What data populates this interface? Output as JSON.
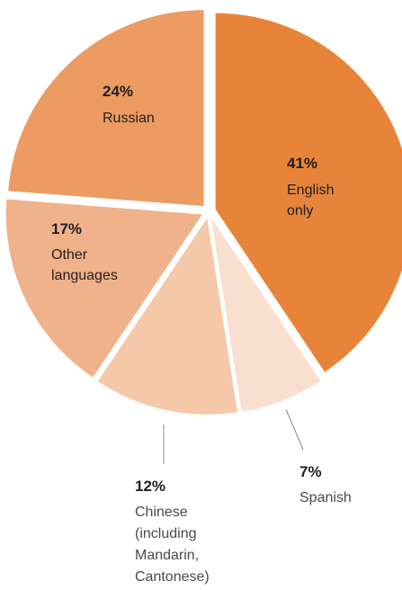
{
  "chart_data": {
    "type": "pie",
    "title": "",
    "slices": [
      {
        "value": 41,
        "percent_label": "41%",
        "label": "English only",
        "label_lines": [
          "English",
          "only"
        ],
        "color": "#e8843a"
      },
      {
        "value": 7,
        "percent_label": "7%",
        "label": "Spanish",
        "label_lines": [
          "Spanish"
        ],
        "color": "#f8dfcf"
      },
      {
        "value": 12,
        "percent_label": "12%",
        "label": "Chinese (including Mandarin, Cantonese)",
        "label_lines": [
          "Chinese",
          "(including",
          "Mandarin,",
          "Cantonese)"
        ],
        "color": "#f4c8a8"
      },
      {
        "value": 17,
        "percent_label": "17%",
        "label": "Other languages",
        "label_lines": [
          "Other",
          "languages"
        ],
        "color": "#f0b28a"
      },
      {
        "value": 24,
        "percent_label": "24%",
        "label": "Russian",
        "label_lines": [
          "Russian"
        ],
        "color": "#ec9b62"
      }
    ]
  }
}
